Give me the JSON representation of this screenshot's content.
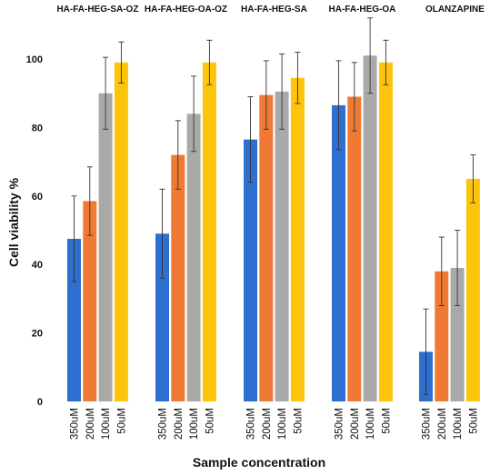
{
  "chart_data": {
    "type": "bar",
    "xlabel": "Sample concentration",
    "ylabel": "Cell viability %",
    "ylim": [
      0,
      110
    ],
    "yticks": [
      0,
      20,
      40,
      60,
      80,
      100
    ],
    "grid": false,
    "concentrations": [
      "350uM",
      "200uM",
      "100uM",
      "50uM"
    ],
    "colors": [
      "#2f6fd0",
      "#f07a33",
      "#a9a9a9",
      "#fcc40a"
    ],
    "groups": [
      {
        "name": "HA-FA-HEG-SA-OZ",
        "values": [
          47.5,
          58.5,
          90,
          99
        ],
        "errors": [
          12.5,
          10,
          10.5,
          6
        ]
      },
      {
        "name": "HA-FA-HEG-OA-OZ",
        "values": [
          49,
          72,
          84,
          99
        ],
        "errors": [
          13,
          10,
          11,
          6.5
        ]
      },
      {
        "name": "HA-FA-HEG-SA",
        "values": [
          76.5,
          89.5,
          90.5,
          94.5
        ],
        "errors": [
          12.5,
          10,
          11,
          7.5
        ]
      },
      {
        "name": "HA-FA-HEG-OA",
        "values": [
          86.5,
          89,
          101,
          99
        ],
        "errors": [
          13,
          10,
          11,
          6.5
        ]
      },
      {
        "name": "OLANZAPINE",
        "values": [
          14.5,
          38,
          39,
          65
        ],
        "errors": [
          12.5,
          10,
          11,
          7
        ]
      }
    ]
  }
}
